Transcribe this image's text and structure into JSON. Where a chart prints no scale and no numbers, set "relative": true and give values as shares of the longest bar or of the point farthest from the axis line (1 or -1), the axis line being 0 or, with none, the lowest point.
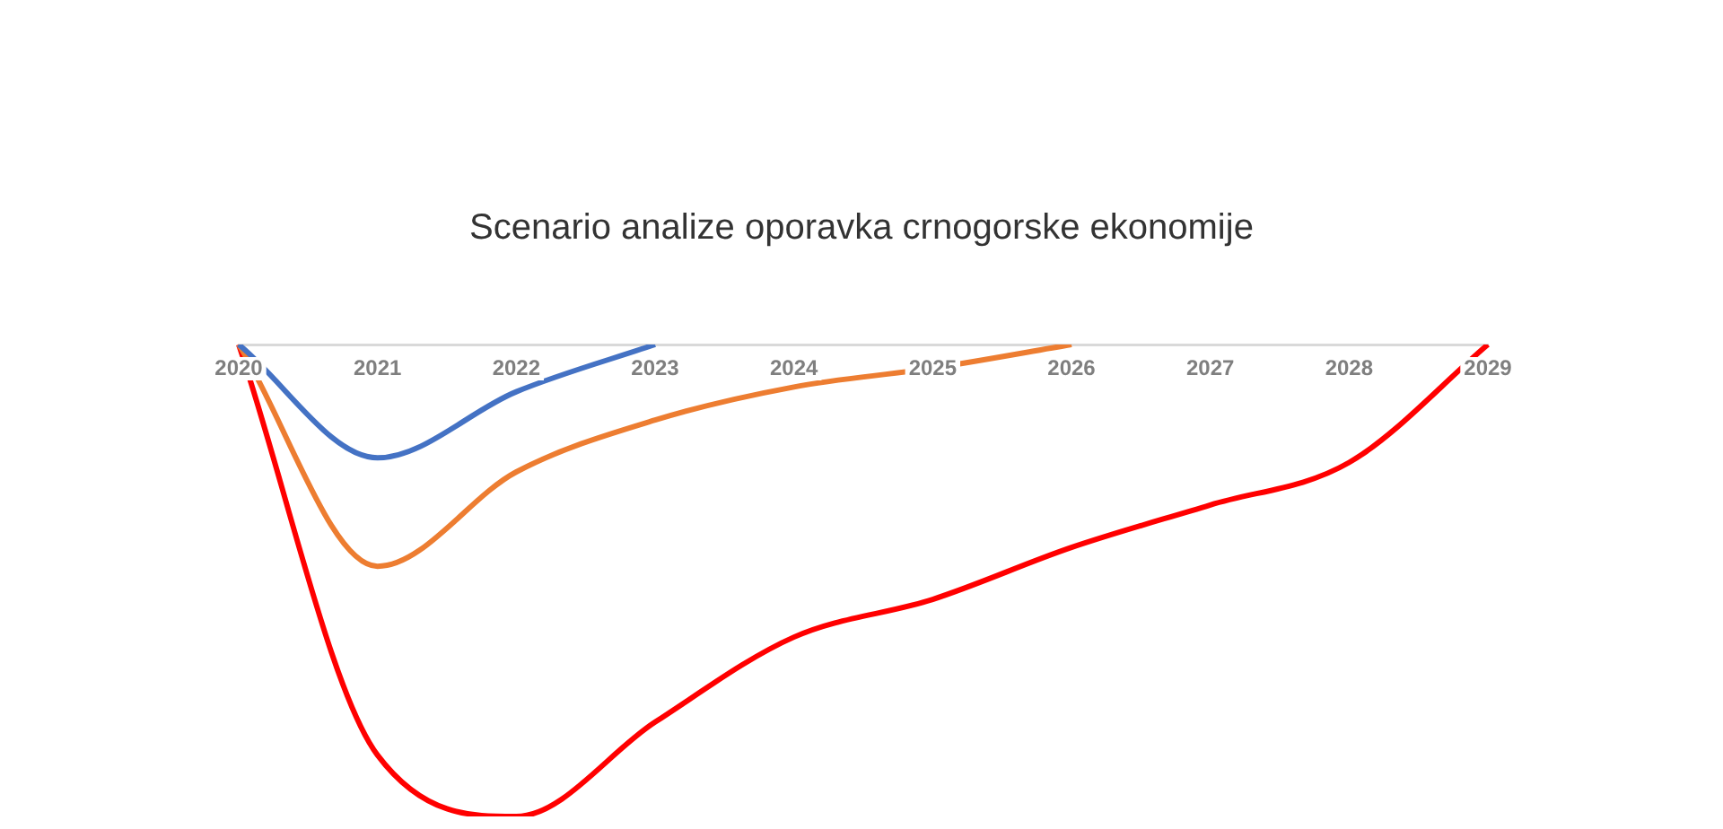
{
  "chart_data": {
    "type": "line",
    "title": "Scenario analize oporavka crnogorske ekonomije",
    "categories": [
      "2020",
      "2021",
      "2022",
      "2023",
      "2024",
      "2025",
      "2026",
      "2027",
      "2028",
      "2029"
    ],
    "series": [
      {
        "color": "#4472c4",
        "values": [
          0,
          -0.24,
          -0.1,
          0,
          null,
          null,
          null,
          null,
          null,
          null
        ]
      },
      {
        "color": "#ed7d31",
        "values": [
          0,
          -0.47,
          -0.27,
          -0.16,
          -0.09,
          -0.05,
          0,
          null,
          null,
          null
        ]
      },
      {
        "color": "#ff0000",
        "values": [
          0,
          -0.87,
          -1,
          -0.8,
          -0.62,
          -0.54,
          -0.43,
          -0.34,
          -0.25,
          0
        ]
      }
    ],
    "relative": true,
    "grid": false,
    "legend": false,
    "marker": "none"
  }
}
